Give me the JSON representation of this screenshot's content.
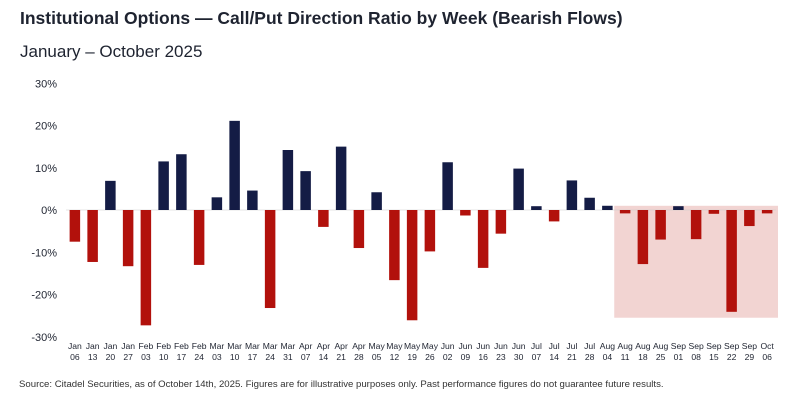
{
  "title": "Institutional Options — Call/Put Direction Ratio by Week (Bearish Flows)",
  "subtitle": "January – October 2025",
  "source": "Source: Citadel Securities, as of October 14th, 2025. Figures are for illustrative purposes only. Past performance figures do not guarantee future results.",
  "colors": {
    "positive": "#141c45",
    "negative": "#b2110c",
    "highlight": "#f2d4d2"
  },
  "chart_data": {
    "type": "bar",
    "title": "Institutional Options — Call/Put Direction Ratio by Week (Bearish Flows)",
    "subtitle": "January – October 2025",
    "ylim": [
      -30,
      30
    ],
    "yticks": [
      -30,
      -20,
      -10,
      0,
      10,
      20,
      30
    ],
    "ytick_labels": [
      "-30%",
      "-20%",
      "-10%",
      "0%",
      "10%",
      "20%",
      "30%"
    ],
    "grid": false,
    "legend": "none",
    "highlight_region": {
      "from": "Aug 11",
      "to": "Oct 06",
      "y_range": [
        -25.5,
        1
      ]
    },
    "categories": [
      "Jan 06",
      "Jan 13",
      "Jan 20",
      "Jan 27",
      "Feb 03",
      "Feb 10",
      "Feb 17",
      "Feb 24",
      "Mar 03",
      "Mar 10",
      "Mar 17",
      "Mar 24",
      "Mar 31",
      "Apr 07",
      "Apr 14",
      "Apr 21",
      "Apr 28",
      "May 05",
      "May 12",
      "May 19",
      "May 26",
      "Jun 02",
      "Jun 09",
      "Jun 16",
      "Jun 23",
      "Jun 30",
      "Jul 07",
      "Jul 14",
      "Jul 21",
      "Jul 28",
      "Aug 04",
      "Aug 11",
      "Aug 18",
      "Aug 25",
      "Sep 01",
      "Sep 08",
      "Sep 15",
      "Sep 22",
      "Sep 29",
      "Oct 06"
    ],
    "tick_labels": [
      [
        "Jan",
        "06"
      ],
      [
        "Jan",
        "13"
      ],
      [
        "Jan",
        "20"
      ],
      [
        "Jan",
        "27"
      ],
      [
        "Feb",
        "03"
      ],
      [
        "Feb",
        "10"
      ],
      [
        "Feb",
        "17"
      ],
      [
        "Feb",
        "24"
      ],
      [
        "Mar",
        "03"
      ],
      [
        "Mar",
        "10"
      ],
      [
        "Mar",
        "17"
      ],
      [
        "Mar",
        "24"
      ],
      [
        "Mar",
        "31"
      ],
      [
        "Apr",
        "07"
      ],
      [
        "Apr",
        "14"
      ],
      [
        "Apr",
        "21"
      ],
      [
        "Apr",
        "28"
      ],
      [
        "May",
        "05"
      ],
      [
        "May",
        "12"
      ],
      [
        "May",
        "19"
      ],
      [
        "May",
        "26"
      ],
      [
        "Jun",
        "02"
      ],
      [
        "Jun",
        "09"
      ],
      [
        "Jun",
        "16"
      ],
      [
        "Jun",
        "23"
      ],
      [
        "Jun",
        "30"
      ],
      [
        "Jul",
        "07"
      ],
      [
        "Jul",
        "14"
      ],
      [
        "Jul",
        "21"
      ],
      [
        "Jul",
        "28"
      ],
      [
        "Aug",
        "04"
      ],
      [
        "Aug",
        "11"
      ],
      [
        "Aug",
        "18"
      ],
      [
        "Aug",
        "25"
      ],
      [
        "Sep",
        "01"
      ],
      [
        "Sep",
        "08"
      ],
      [
        "Sep",
        "15"
      ],
      [
        "Sep",
        "22"
      ],
      [
        "Sep",
        "29"
      ],
      [
        "Oct",
        "06"
      ]
    ],
    "values": [
      -7.5,
      -12.3,
      6.9,
      -13.3,
      -27.3,
      11.5,
      13.2,
      -13.0,
      3.0,
      21.1,
      4.6,
      -23.2,
      14.2,
      9.2,
      -4.0,
      15.0,
      -9.0,
      4.2,
      -16.6,
      -26.1,
      -9.8,
      11.3,
      -1.3,
      -13.7,
      -5.6,
      9.8,
      0.9,
      -2.7,
      7.0,
      2.9,
      1.0,
      -0.8,
      -12.8,
      -7.0,
      0.9,
      -6.9,
      -0.9,
      -24.1,
      -3.8,
      -0.8
    ]
  }
}
